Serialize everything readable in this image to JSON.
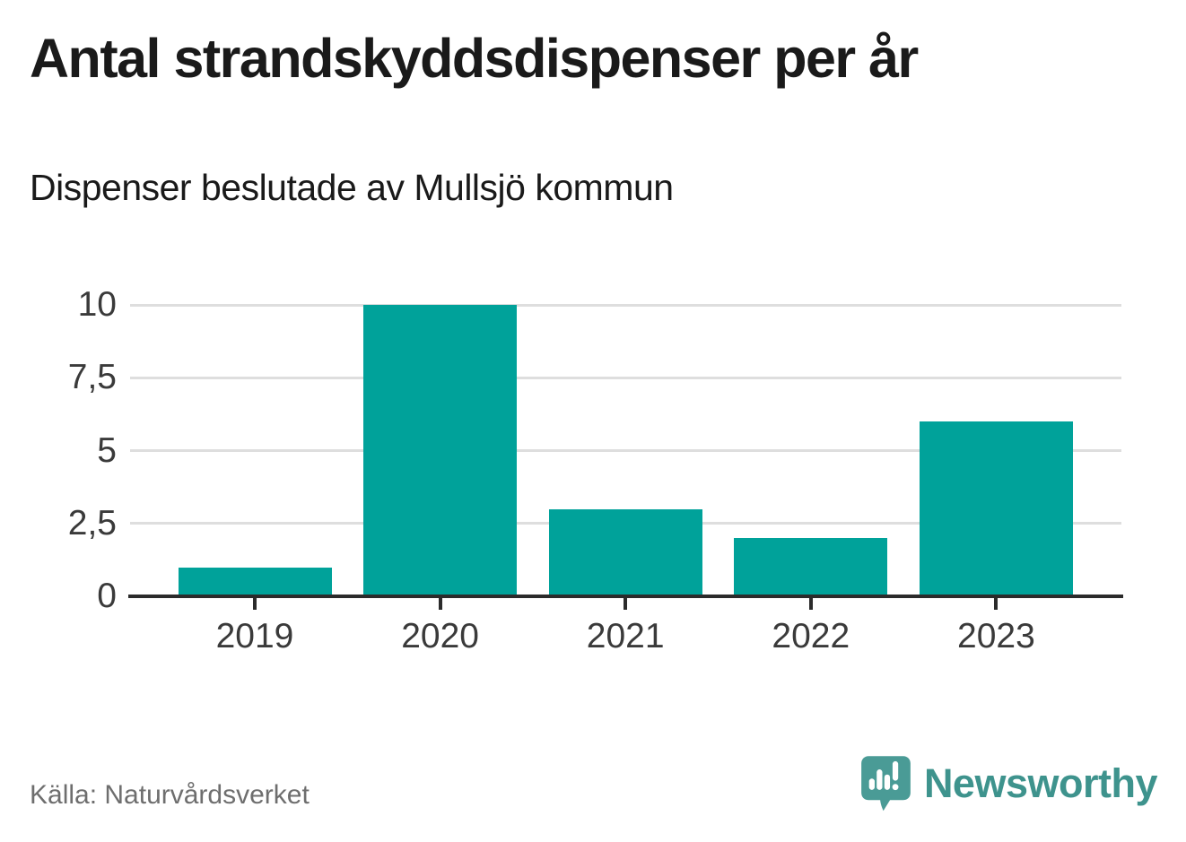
{
  "header": {
    "title": "Antal strandskyddsdispenser per år",
    "subtitle": "Dispenser beslutade av Mullsjö kommun"
  },
  "footer": {
    "source": "Källa: Naturvårdsverket",
    "brand": "Newsworthy"
  },
  "colors": {
    "bar": "#00a29a",
    "grid": "#dedede",
    "axis": "#2b2b2b",
    "tick_text": "#3a3a3a",
    "title_text": "#1a1a1a",
    "source_text": "#6e6e6e",
    "brand_text": "#3e938d",
    "brand_icon": "#4a9b96"
  },
  "chart_data": {
    "type": "bar",
    "categories": [
      "2019",
      "2020",
      "2021",
      "2022",
      "2023"
    ],
    "values": [
      1,
      10,
      3,
      2,
      6
    ],
    "title": "Antal strandskyddsdispenser per år",
    "subtitle": "Dispenser beslutade av Mullsjö kommun",
    "xlabel": "",
    "ylabel": "",
    "ylim": [
      0,
      10
    ],
    "yticks": [
      0,
      2.5,
      5,
      7.5,
      10
    ],
    "ytick_labels": [
      "0",
      "2,5",
      "5",
      "7,5",
      "10"
    ],
    "grid": "horizontal",
    "legend": "none",
    "source": "Källa: Naturvårdsverket"
  }
}
